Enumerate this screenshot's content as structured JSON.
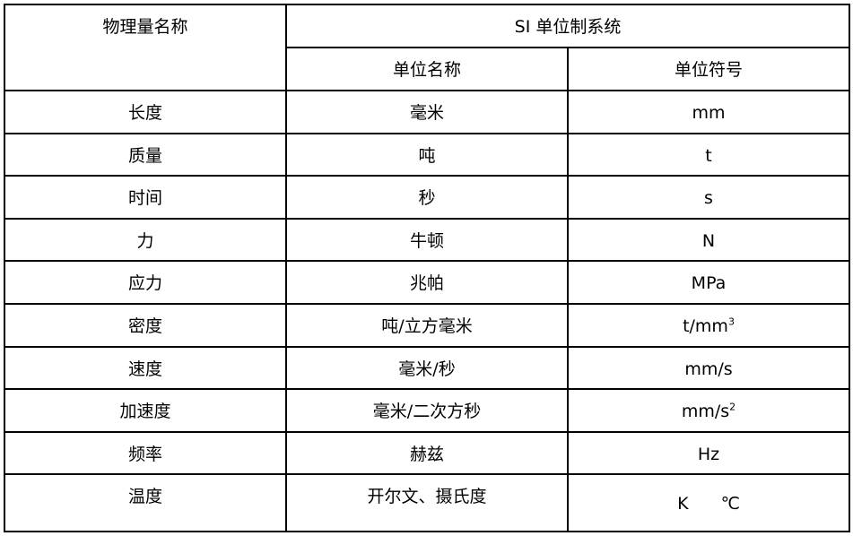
{
  "header": {
    "quantity_name": "物理量名称",
    "system": "SI 单位制系统",
    "unit_name": "单位名称",
    "unit_symbol": "单位符号"
  },
  "rows": [
    {
      "quantity": "长度",
      "unit": "毫米",
      "symbol": "mm"
    },
    {
      "quantity": "质量",
      "unit": "吨",
      "symbol": "t"
    },
    {
      "quantity": "时间",
      "unit": "秒",
      "symbol": "s"
    },
    {
      "quantity": "力",
      "unit": "牛顿",
      "symbol": "N"
    },
    {
      "quantity": "应力",
      "unit": "兆帕",
      "symbol": "MPa"
    },
    {
      "quantity": "密度",
      "unit": "吨/立方毫米",
      "symbol": "t/mm",
      "sup": "3"
    },
    {
      "quantity": "速度",
      "unit": "毫米/秒",
      "symbol": "mm/s"
    },
    {
      "quantity": "加速度",
      "unit": "毫米/二次方秒",
      "symbol": "mm/s",
      "sup": "2"
    },
    {
      "quantity": "频率",
      "unit": "赫兹",
      "symbol": "Hz"
    },
    {
      "quantity": "温度",
      "unit": "开尔文、摄氏度",
      "symbol": "K",
      "symbol2": "℃"
    }
  ]
}
